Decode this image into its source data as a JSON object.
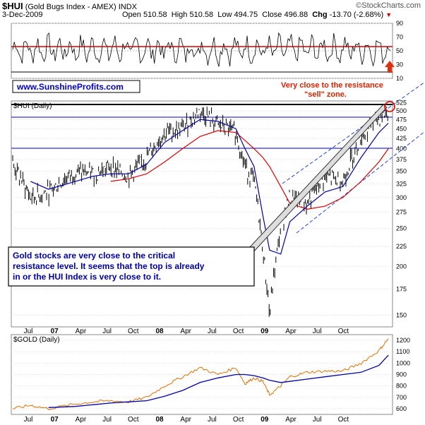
{
  "header": {
    "symbol": "$HUI",
    "title": "(Gold Bugs Index - AMEX) INDX",
    "date": "3-Dec-2009",
    "open_label": "Open",
    "open": "510.58",
    "high_label": "High",
    "high": "510.58",
    "low_label": "Low",
    "low": "494.75",
    "close_label": "Close",
    "close": "496.88",
    "chg_label": "Chg",
    "chg": "-13.70 (-2.68%)",
    "brand": "©StockCharts.com"
  },
  "colors": {
    "resistance": "#d00000",
    "trend_blue": "#0000cc",
    "ma_red": "#e00000",
    "ma_blue": "#0000aa",
    "gold_line": "#e07000",
    "callout_text": "#0000aa",
    "warn": "#dd2200"
  },
  "chart_data": [
    {
      "type": "line",
      "panel": "top",
      "yticks": [
        "90",
        "70",
        "50",
        "30",
        "10"
      ],
      "ylim": [
        10,
        90
      ],
      "reference_lines": [
        70,
        30
      ],
      "series": []
    },
    {
      "type": "line",
      "panel": "main",
      "label": "$HUI (Daily)",
      "xlabels": [
        "Jul",
        "07",
        "Apr",
        "Jul",
        "Oct",
        "08",
        "Apr",
        "Jul",
        "Oct",
        "09",
        "Apr",
        "Jul",
        "Oct"
      ],
      "yticks": [
        "525",
        "500",
        "475",
        "450",
        "425",
        "400",
        "375",
        "350",
        "325",
        "300",
        "275",
        "250",
        "225",
        "200",
        "175",
        "150"
      ],
      "ylim": [
        140,
        530
      ],
      "scale": "log",
      "horizontal_lines": [
        520,
        483,
        404
      ],
      "annotations": {
        "website": "www.SunshineProfits.com",
        "note": "Very close to the resistance \"sell\" zone.",
        "callout": "Gold stocks are very close to the critical resistance level. It seems that the top is already in or the HUI Index is very close to it."
      },
      "x": [
        "2006-06-01",
        "2006-08-01",
        "2006-10-01",
        "2007-01-01",
        "2007-03-01",
        "2007-05-01",
        "2007-07-01",
        "2007-09-01",
        "2007-11-01",
        "2008-01-01",
        "2008-03-01",
        "2008-05-01",
        "2008-07-01",
        "2008-08-01",
        "2008-09-01",
        "2008-10-01",
        "2008-10-24",
        "2008-12-01",
        "2009-01-01",
        "2009-03-01",
        "2009-05-01",
        "2009-07-01",
        "2009-09-01",
        "2009-11-01",
        "2009-12-03"
      ],
      "close": [
        365,
        300,
        310,
        350,
        345,
        360,
        340,
        380,
        440,
        450,
        500,
        460,
        440,
        360,
        330,
        220,
        150,
        250,
        300,
        290,
        340,
        330,
        430,
        480,
        497
      ],
      "ma_short": [
        null,
        330,
        315,
        330,
        340,
        345,
        345,
        365,
        415,
        445,
        475,
        470,
        450,
        400,
        360,
        270,
        220,
        215,
        260,
        285,
        310,
        320,
        380,
        440,
        465
      ],
      "ma_long": [
        null,
        null,
        null,
        null,
        null,
        330,
        335,
        345,
        370,
        400,
        430,
        445,
        440,
        420,
        400,
        380,
        360,
        320,
        290,
        280,
        285,
        300,
        330,
        370,
        400
      ]
    },
    {
      "type": "line",
      "panel": "bottom",
      "label": "$GOLD (Daily)",
      "xlabels": [
        "Jul",
        "07",
        "Apr",
        "Jul",
        "Oct",
        "08",
        "Apr",
        "Jul",
        "Oct",
        "09",
        "Apr",
        "Jul",
        "Oct"
      ],
      "yticks": [
        "1200",
        "1100",
        "1000",
        "900",
        "800",
        "700",
        "600"
      ],
      "ylim": [
        550,
        1250
      ],
      "x": [
        "2006-06-01",
        "2006-08-01",
        "2006-10-01",
        "2007-01-01",
        "2007-03-01",
        "2007-05-01",
        "2007-07-01",
        "2007-09-01",
        "2007-11-01",
        "2008-01-01",
        "2008-03-01",
        "2008-05-01",
        "2008-07-01",
        "2008-08-01",
        "2008-09-01",
        "2008-10-01",
        "2008-10-24",
        "2008-12-01",
        "2009-01-01",
        "2009-03-01",
        "2009-05-01",
        "2009-07-01",
        "2009-09-01",
        "2009-11-01",
        "2009-12-03"
      ],
      "price": [
        600,
        630,
        600,
        640,
        660,
        670,
        660,
        700,
        800,
        880,
        960,
        900,
        960,
        820,
        870,
        840,
        720,
        800,
        880,
        920,
        930,
        930,
        1000,
        1110,
        1215
      ],
      "ma_long": [
        null,
        null,
        610,
        620,
        635,
        650,
        660,
        670,
        710,
        760,
        830,
        870,
        900,
        900,
        890,
        870,
        850,
        830,
        840,
        860,
        880,
        900,
        920,
        980,
        1070
      ]
    }
  ]
}
